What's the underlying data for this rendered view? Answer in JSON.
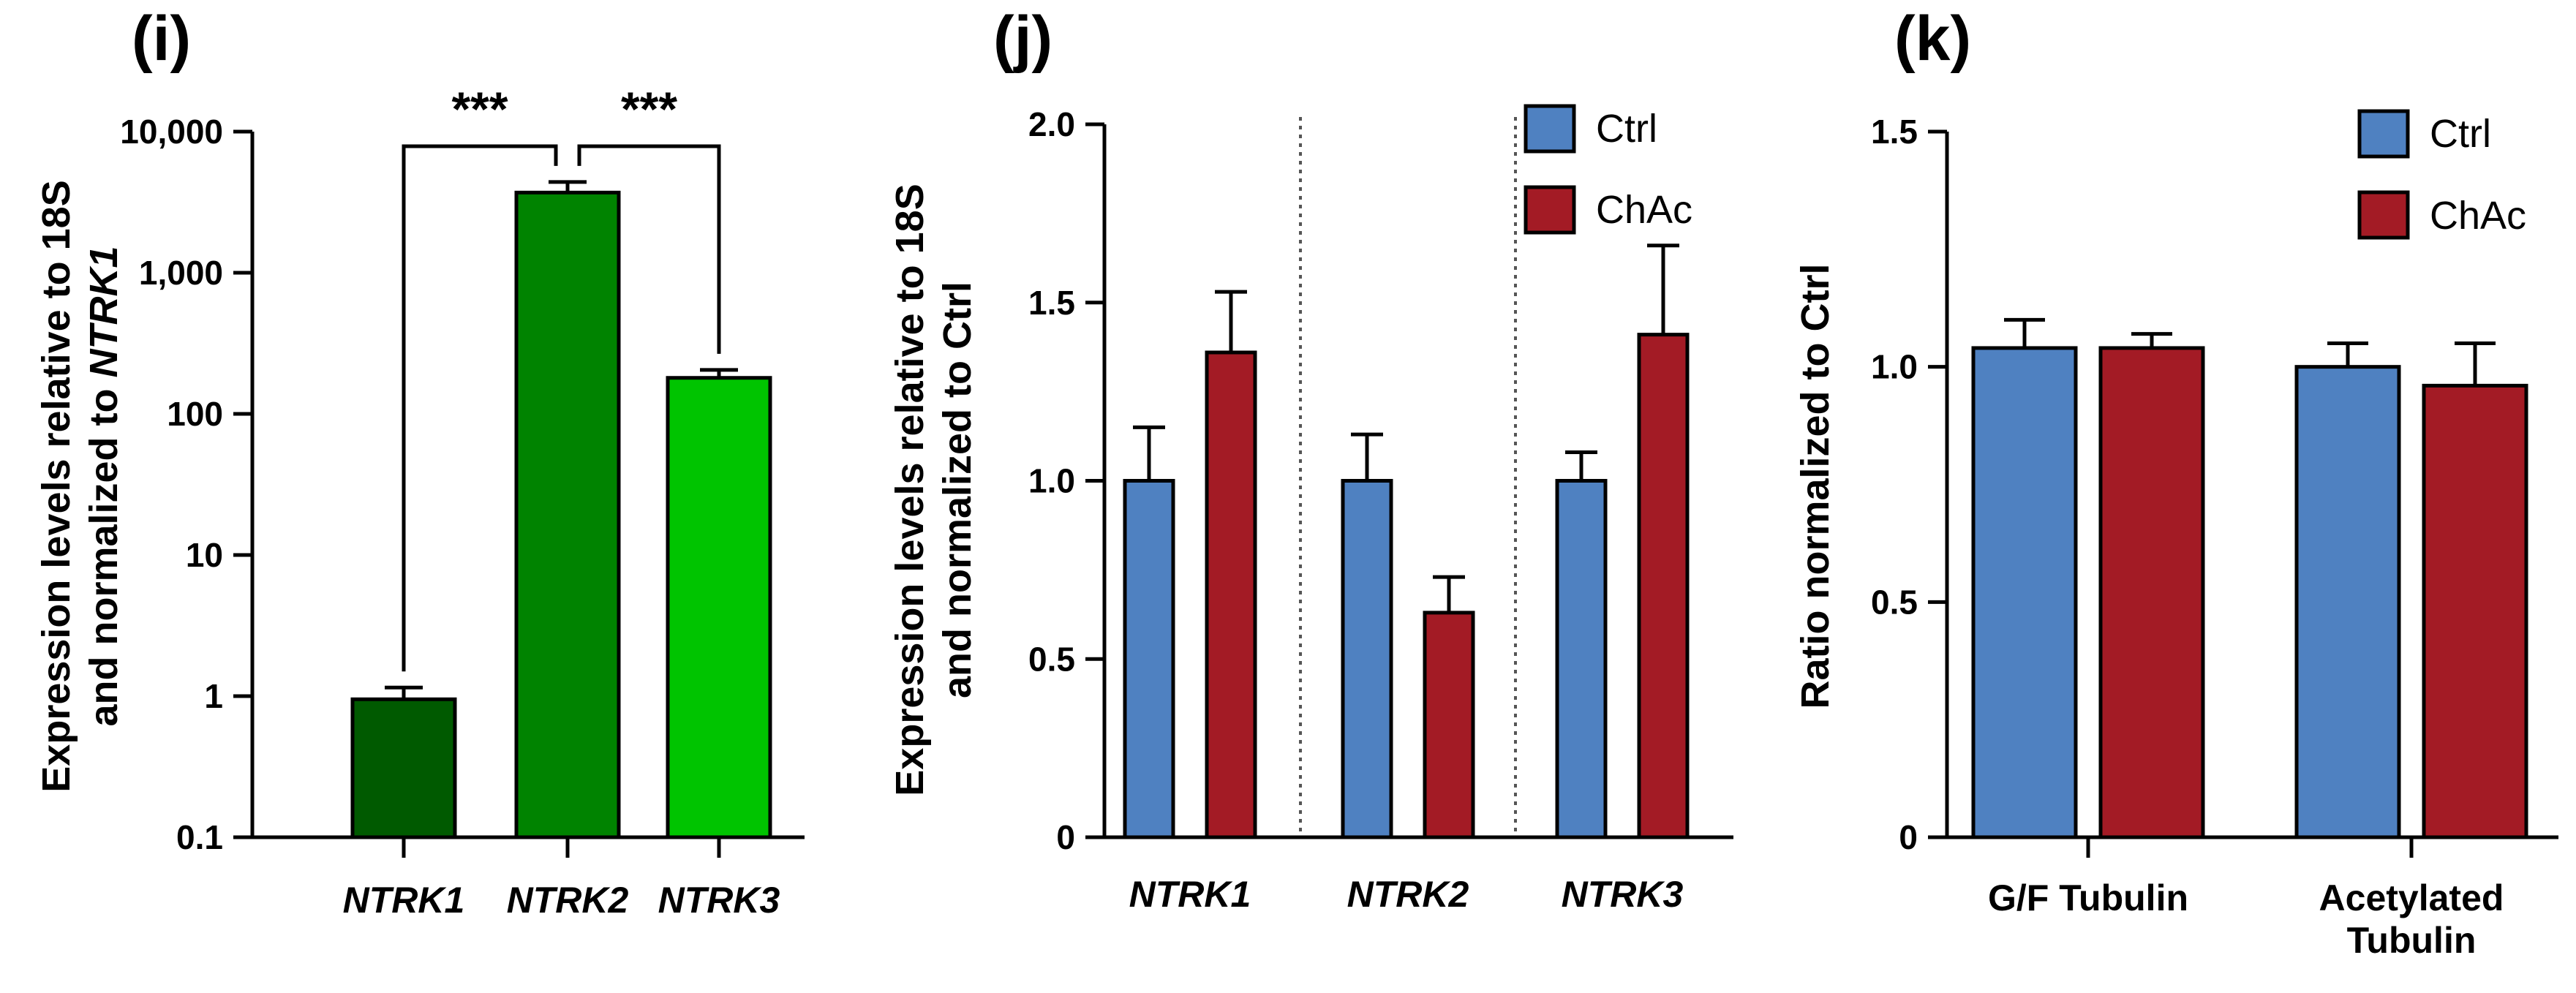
{
  "colors": {
    "ctrl": "#4f81c1",
    "chac": "#a31b25",
    "ntrk1": "#005a00",
    "ntrk2": "#008300",
    "ntrk3": "#00c400"
  },
  "chart_data": [
    {
      "panel": "(i)",
      "type": "bar",
      "yscale": "log",
      "ylabel_line1": "Expression levels relative to 18S",
      "ylabel_line2_prefix": "and normalized to ",
      "ylabel_line2_italic": "NTRK1",
      "ylim": [
        0.1,
        10000
      ],
      "yticks": [
        0.1,
        1,
        10,
        100,
        1000,
        10000
      ],
      "ytick_labels": [
        "0.1",
        "1",
        "10",
        "100",
        "1,000",
        "10,000"
      ],
      "categories": [
        "NTRK1",
        "NTRK2",
        "NTRK3"
      ],
      "values": [
        0.95,
        3700,
        180
      ],
      "errors_upper": [
        1.15,
        4400,
        205
      ],
      "significance": [
        {
          "from": 0,
          "to": 1,
          "label": "***"
        },
        {
          "from": 1,
          "to": 2,
          "label": "***"
        }
      ]
    },
    {
      "panel": "(j)",
      "type": "bar",
      "ylabel_line1": "Expression levels relative to 18S",
      "ylabel_line2": "and normalized to Ctrl",
      "ylim": [
        0,
        2.0
      ],
      "yticks": [
        0,
        0.5,
        1.0,
        1.5,
        2.0
      ],
      "ytick_labels": [
        "0",
        "0.5",
        "1.0",
        "1.5",
        "2.0"
      ],
      "categories": [
        "NTRK1",
        "NTRK2",
        "NTRK3"
      ],
      "series": [
        {
          "name": "Ctrl",
          "values": [
            1.0,
            1.0,
            1.0
          ],
          "errors": [
            0.15,
            0.13,
            0.08
          ]
        },
        {
          "name": "ChAc",
          "values": [
            1.36,
            0.63,
            1.41
          ],
          "errors": [
            0.17,
            0.1,
            0.25
          ]
        }
      ],
      "legend": [
        "Ctrl",
        "ChAc"
      ],
      "legend_position": "top-right"
    },
    {
      "panel": "(k)",
      "type": "bar",
      "ylabel": "Ratio normalized to Ctrl",
      "ylim": [
        0,
        1.5
      ],
      "yticks": [
        0,
        0.5,
        1.0,
        1.5
      ],
      "ytick_labels": [
        "0",
        "0.5",
        "1.0",
        "1.5"
      ],
      "categories": [
        "G/F Tubulin",
        "Acetylated Tubulin"
      ],
      "category_lines": [
        [
          "G/F Tubulin"
        ],
        [
          "Acetylated",
          "Tubulin"
        ]
      ],
      "series": [
        {
          "name": "Ctrl",
          "values": [
            1.04,
            1.0
          ],
          "errors": [
            0.06,
            0.05
          ]
        },
        {
          "name": "ChAc",
          "values": [
            1.04,
            0.96
          ],
          "errors": [
            0.03,
            0.09
          ]
        }
      ],
      "legend": [
        "Ctrl",
        "ChAc"
      ],
      "legend_position": "top-right"
    }
  ]
}
